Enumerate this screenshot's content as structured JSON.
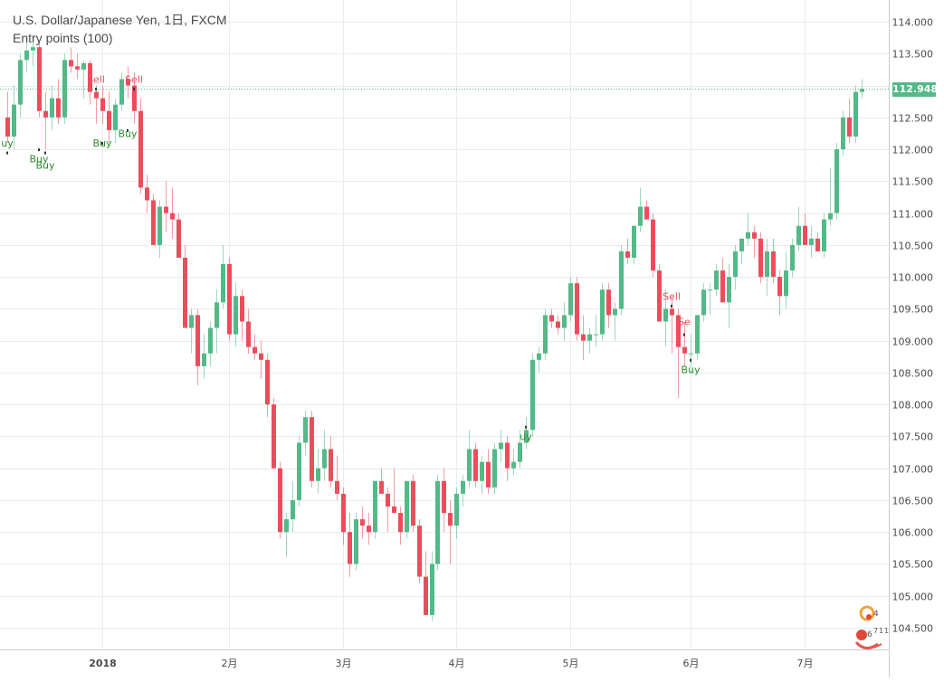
{
  "header": {
    "title": "U.S. Dollar/Japanese Yen, 1日, FXCM",
    "indicator": "Entry points (100)"
  },
  "last_price": "112.948",
  "watermark": {
    "digits": [
      "4",
      "6",
      "7",
      "1",
      "1"
    ]
  },
  "colors": {
    "up": "#53b987",
    "down": "#eb4d5c",
    "grid": "#e6ecf0",
    "axis_text": "#4a4a4a",
    "last_line": "#53b987",
    "sell_text": "#eb4d5c",
    "buy_text": "#2e8b2e"
  },
  "chart_data": {
    "type": "candlestick",
    "title": "U.S. Dollar/Japanese Yen, 1日, FXCM",
    "y_axis": {
      "ylim": [
        104.2,
        114.3
      ],
      "ticks": [
        "104.500",
        "105.000",
        "105.500",
        "106.000",
        "106.500",
        "107.000",
        "107.500",
        "108.000",
        "108.500",
        "109.000",
        "109.500",
        "110.000",
        "110.500",
        "111.000",
        "111.500",
        "112.000",
        "112.500",
        "113.000",
        "113.500",
        "114.000"
      ],
      "position": "right"
    },
    "x_axis": {
      "labels": [
        {
          "text": "2018",
          "index": 15
        },
        {
          "text": "2月",
          "index": 35
        },
        {
          "text": "3月",
          "index": 53
        },
        {
          "text": "4月",
          "index": 71
        },
        {
          "text": "5月",
          "index": 89
        },
        {
          "text": "6月",
          "index": 108
        },
        {
          "text": "7月",
          "index": 126
        }
      ]
    },
    "grid": true,
    "last_price": 112.948,
    "ohlc": [
      [
        112.5,
        112.9,
        112.1,
        112.2
      ],
      [
        112.2,
        113.0,
        112.0,
        112.7
      ],
      [
        112.7,
        113.5,
        112.5,
        113.4
      ],
      [
        113.4,
        113.7,
        113.2,
        113.55
      ],
      [
        113.55,
        113.8,
        113.3,
        113.6
      ],
      [
        113.6,
        113.7,
        112.5,
        112.6
      ],
      [
        112.6,
        112.9,
        112.0,
        112.5
      ],
      [
        112.5,
        113.0,
        112.3,
        112.8
      ],
      [
        112.8,
        113.1,
        112.4,
        112.5
      ],
      [
        112.5,
        113.5,
        112.4,
        113.4
      ],
      [
        113.4,
        113.6,
        113.2,
        113.3
      ],
      [
        113.3,
        113.5,
        113.1,
        113.25
      ],
      [
        113.25,
        113.4,
        112.8,
        113.35
      ],
      [
        113.35,
        113.4,
        112.7,
        112.9
      ],
      [
        112.9,
        113.0,
        112.4,
        112.8
      ],
      [
        112.8,
        113.0,
        112.4,
        112.6
      ],
      [
        112.6,
        112.9,
        112.1,
        112.3
      ],
      [
        112.3,
        112.8,
        112.1,
        112.7
      ],
      [
        112.7,
        113.2,
        112.6,
        113.1
      ],
      [
        113.1,
        113.3,
        112.8,
        113.0
      ],
      [
        113.0,
        113.2,
        112.4,
        112.6
      ],
      [
        112.6,
        112.8,
        111.3,
        111.4
      ],
      [
        111.4,
        111.6,
        111.0,
        111.2
      ],
      [
        111.2,
        111.3,
        110.5,
        110.5
      ],
      [
        110.5,
        111.2,
        110.3,
        111.1
      ],
      [
        111.1,
        111.5,
        110.7,
        111.0
      ],
      [
        111.0,
        111.4,
        110.6,
        110.9
      ],
      [
        110.9,
        111.0,
        110.3,
        110.3
      ],
      [
        110.3,
        110.5,
        109.2,
        109.2
      ],
      [
        109.2,
        109.5,
        108.8,
        109.4
      ],
      [
        109.4,
        109.5,
        108.3,
        108.6
      ],
      [
        108.6,
        109.1,
        108.4,
        108.8
      ],
      [
        108.8,
        109.3,
        108.6,
        109.2
      ],
      [
        109.2,
        109.8,
        108.8,
        109.6
      ],
      [
        109.6,
        110.5,
        109.5,
        110.2
      ],
      [
        110.2,
        110.3,
        109.0,
        109.1
      ],
      [
        109.1,
        109.9,
        108.9,
        109.7
      ],
      [
        109.7,
        109.8,
        109.0,
        109.3
      ],
      [
        109.3,
        109.5,
        108.8,
        108.9
      ],
      [
        108.9,
        109.1,
        108.7,
        108.8
      ],
      [
        108.8,
        109.0,
        108.4,
        108.7
      ],
      [
        108.7,
        108.8,
        107.8,
        108.0
      ],
      [
        108.0,
        108.1,
        107.0,
        107.0
      ],
      [
        107.0,
        107.1,
        105.9,
        106.0
      ],
      [
        106.0,
        106.3,
        105.6,
        106.2
      ],
      [
        106.2,
        106.8,
        106.0,
        106.5
      ],
      [
        106.5,
        107.5,
        106.4,
        107.4
      ],
      [
        107.4,
        107.9,
        107.2,
        107.8
      ],
      [
        107.8,
        107.9,
        106.7,
        106.8
      ],
      [
        106.8,
        107.3,
        106.6,
        107.0
      ],
      [
        107.0,
        107.6,
        106.8,
        107.3
      ],
      [
        107.3,
        107.5,
        106.7,
        106.8
      ],
      [
        106.8,
        107.2,
        106.5,
        106.6
      ],
      [
        106.6,
        106.7,
        105.8,
        106.0
      ],
      [
        106.0,
        106.3,
        105.3,
        105.5
      ],
      [
        105.5,
        106.3,
        105.4,
        106.2
      ],
      [
        106.2,
        106.4,
        105.9,
        106.1
      ],
      [
        106.1,
        106.3,
        105.8,
        106.0
      ],
      [
        106.0,
        106.8,
        105.9,
        106.8
      ],
      [
        106.8,
        107.0,
        106.6,
        106.6
      ],
      [
        106.6,
        106.7,
        106.0,
        106.4
      ],
      [
        106.4,
        107.0,
        106.3,
        106.3
      ],
      [
        106.3,
        106.4,
        105.8,
        106.0
      ],
      [
        106.0,
        106.8,
        105.9,
        106.8
      ],
      [
        106.8,
        106.9,
        106.0,
        106.1
      ],
      [
        106.1,
        106.2,
        105.2,
        105.3
      ],
      [
        105.3,
        105.7,
        104.7,
        104.7
      ],
      [
        104.7,
        105.7,
        104.6,
        105.5
      ],
      [
        105.5,
        106.9,
        105.4,
        106.8
      ],
      [
        106.8,
        107.0,
        106.0,
        106.3
      ],
      [
        106.3,
        106.5,
        105.5,
        106.1
      ],
      [
        106.1,
        106.7,
        105.9,
        106.6
      ],
      [
        106.6,
        106.9,
        106.4,
        106.8
      ],
      [
        106.8,
        107.6,
        106.7,
        107.3
      ],
      [
        107.3,
        107.4,
        106.7,
        106.8
      ],
      [
        106.8,
        107.2,
        106.6,
        107.1
      ],
      [
        107.1,
        107.3,
        106.6,
        106.7
      ],
      [
        106.7,
        107.4,
        106.6,
        107.3
      ],
      [
        107.3,
        107.6,
        107.1,
        107.4
      ],
      [
        107.4,
        107.5,
        106.8,
        107.0
      ],
      [
        107.0,
        107.3,
        106.9,
        107.1
      ],
      [
        107.1,
        107.6,
        107.0,
        107.4
      ],
      [
        107.4,
        107.8,
        107.3,
        107.6
      ],
      [
        107.6,
        108.8,
        107.5,
        108.7
      ],
      [
        108.7,
        108.9,
        108.5,
        108.8
      ],
      [
        108.8,
        109.5,
        108.7,
        109.4
      ],
      [
        109.4,
        109.5,
        109.2,
        109.3
      ],
      [
        109.3,
        109.4,
        109.1,
        109.2
      ],
      [
        109.2,
        109.6,
        109.0,
        109.4
      ],
      [
        109.4,
        110.0,
        109.3,
        109.9
      ],
      [
        109.9,
        110.0,
        109.0,
        109.1
      ],
      [
        109.1,
        109.4,
        108.7,
        109.0
      ],
      [
        109.0,
        109.2,
        108.8,
        109.1
      ],
      [
        109.1,
        109.4,
        108.9,
        109.1
      ],
      [
        109.1,
        109.9,
        109.0,
        109.8
      ],
      [
        109.8,
        109.9,
        109.2,
        109.4
      ],
      [
        109.4,
        109.6,
        109.0,
        109.5
      ],
      [
        109.5,
        110.5,
        109.4,
        110.4
      ],
      [
        110.4,
        110.6,
        110.2,
        110.3
      ],
      [
        110.3,
        110.8,
        110.2,
        110.8
      ],
      [
        110.8,
        111.4,
        110.7,
        111.1
      ],
      [
        111.1,
        111.2,
        110.9,
        110.9
      ],
      [
        110.9,
        111.0,
        110.0,
        110.1
      ],
      [
        110.1,
        110.2,
        109.3,
        109.3
      ],
      [
        109.3,
        109.8,
        108.9,
        109.5
      ],
      [
        109.5,
        109.7,
        108.8,
        109.4
      ],
      [
        109.4,
        109.5,
        108.1,
        108.9
      ],
      [
        108.9,
        109.3,
        108.6,
        108.8
      ],
      [
        108.8,
        109.1,
        108.5,
        108.8
      ],
      [
        108.8,
        109.3,
        108.7,
        109.4
      ],
      [
        109.4,
        109.9,
        109.3,
        109.8
      ],
      [
        109.8,
        109.9,
        109.4,
        109.8
      ],
      [
        109.8,
        110.2,
        109.7,
        110.1
      ],
      [
        110.1,
        110.3,
        109.6,
        109.6
      ],
      [
        109.6,
        110.2,
        109.2,
        110.0
      ],
      [
        110.0,
        110.5,
        109.8,
        110.4
      ],
      [
        110.4,
        110.6,
        110.2,
        110.6
      ],
      [
        110.6,
        111.0,
        110.5,
        110.7
      ],
      [
        110.7,
        110.8,
        110.3,
        110.6
      ],
      [
        110.6,
        110.7,
        109.9,
        110.0
      ],
      [
        110.0,
        110.6,
        109.7,
        110.4
      ],
      [
        110.4,
        110.6,
        109.9,
        110.0
      ],
      [
        110.0,
        110.1,
        109.4,
        109.7
      ],
      [
        109.7,
        110.4,
        109.5,
        110.1
      ],
      [
        110.1,
        110.6,
        110.0,
        110.5
      ],
      [
        110.5,
        111.1,
        110.4,
        110.8
      ],
      [
        110.8,
        111.0,
        110.5,
        110.5
      ],
      [
        110.5,
        110.8,
        110.3,
        110.6
      ],
      [
        110.6,
        110.7,
        110.4,
        110.4
      ],
      [
        110.4,
        111.0,
        110.3,
        110.9
      ],
      [
        110.9,
        111.7,
        110.8,
        111.0
      ],
      [
        111.0,
        112.1,
        110.9,
        112.0
      ],
      [
        112.0,
        112.6,
        111.9,
        112.5
      ],
      [
        112.5,
        112.8,
        112.1,
        112.2
      ],
      [
        112.2,
        113.0,
        112.1,
        112.9
      ],
      [
        112.9,
        113.1,
        112.8,
        112.948
      ]
    ],
    "signals": [
      {
        "type": "Buy",
        "label": "uy",
        "index": 0,
        "price": 111.95,
        "text_y": 112.1
      },
      {
        "type": "Buy",
        "label": "Buy",
        "index": 5,
        "price": 112.0,
        "text_y": 111.85
      },
      {
        "type": "Buy",
        "label": "Buy",
        "index": 6,
        "price": 111.95,
        "text_y": 111.75
      },
      {
        "type": "Sell",
        "label": "Sell",
        "index": 14,
        "price": 112.95,
        "text_y": 113.1
      },
      {
        "type": "Buy",
        "label": "Buy",
        "index": 15,
        "price": 112.1,
        "text_y": 112.1
      },
      {
        "type": "Buy",
        "label": "Buy",
        "index": 19,
        "price": 112.3,
        "text_y": 112.25
      },
      {
        "type": "Sell",
        "label": "Sell",
        "index": 20,
        "price": 112.95,
        "text_y": 113.1
      },
      {
        "type": "Buy",
        "label": "uy",
        "index": 82,
        "price": 107.65,
        "text_y": 107.5
      },
      {
        "type": "Sell",
        "label": "Sell",
        "index": 105,
        "price": 109.55,
        "text_y": 109.7
      },
      {
        "type": "Sell",
        "label": "Se",
        "index": 107,
        "price": 109.1,
        "text_y": 109.3
      },
      {
        "type": "Buy",
        "label": "Buy",
        "index": 108,
        "price": 108.7,
        "text_y": 108.55
      }
    ]
  }
}
